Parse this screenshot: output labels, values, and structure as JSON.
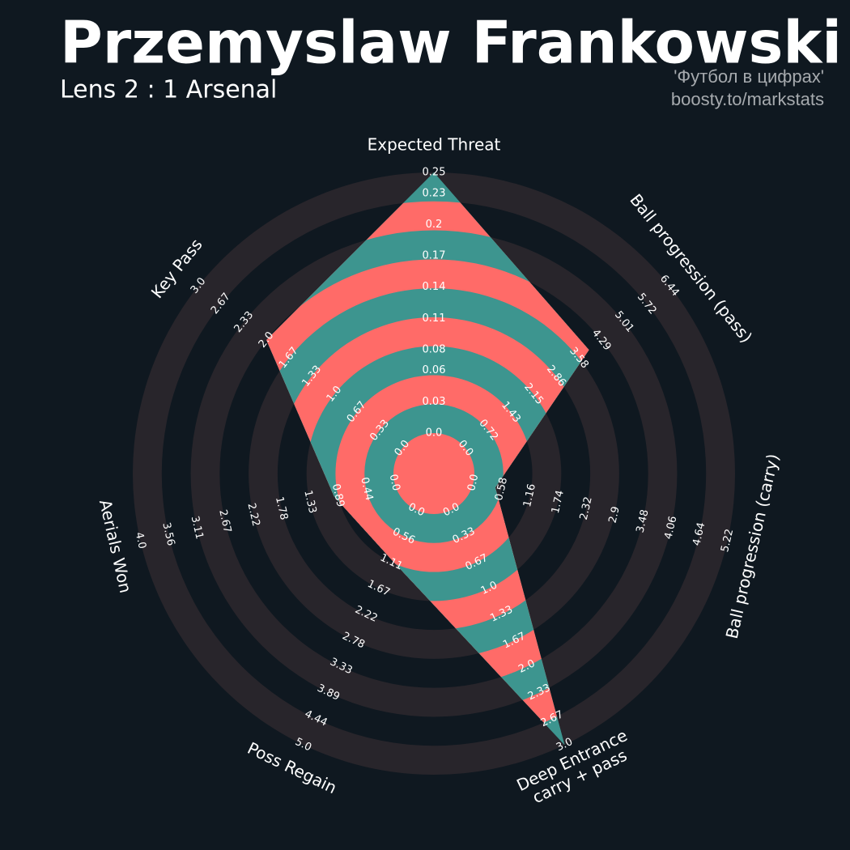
{
  "chart_data": {
    "type": "radar",
    "title": "Przemyslaw Frankowski",
    "subtitle": "Lens 2 : 1 Arsenal",
    "credits": [
      "'Футбол в цифрах'",
      "boosty.to/markstats"
    ],
    "categories": [
      "Expected Threat",
      "Ball progression (pass)",
      "Ball progression (carry)",
      "Deep Entrance\ncarry + pass",
      "Poss Regain",
      "Aerials Won",
      "Key Pass"
    ],
    "values": [
      0.25,
      3.9,
      0.45,
      3,
      1.07,
      0.95,
      2
    ],
    "ranges": [
      [
        0,
        0.25
      ],
      [
        0,
        6.44
      ],
      [
        0,
        5.22
      ],
      [
        0,
        3
      ],
      [
        0,
        5
      ],
      [
        0,
        4
      ],
      [
        0,
        3
      ]
    ],
    "ticks": [
      [
        {
          "value": 0,
          "label": "0.0"
        },
        0.03,
        0.06,
        0.08,
        0.11,
        0.14,
        0.17,
        0.2,
        0.23,
        0.25
      ],
      [
        {
          "value": 0,
          "label": "0.0"
        },
        0.72,
        1.43,
        2.15,
        2.86,
        3.58,
        4.29,
        5.01,
        5.72,
        6.44
      ],
      [
        {
          "value": 0,
          "label": "0.0"
        },
        0.58,
        1.16,
        1.74,
        2.32,
        2.9,
        3.48,
        4.06,
        4.64,
        5.22
      ],
      [
        {
          "value": 0,
          "label": "0.0"
        },
        0.33,
        0.67,
        {
          "value": 1,
          "label": "1.0"
        },
        1.33,
        1.67,
        {
          "value": 2,
          "label": "2.0"
        },
        2.33,
        2.67,
        {
          "value": 3,
          "label": "3.0"
        }
      ],
      [
        {
          "value": 0,
          "label": "0.0"
        },
        0.56,
        1.11,
        1.67,
        2.22,
        2.78,
        3.33,
        3.89,
        4.44,
        {
          "value": 5,
          "label": "5.0"
        }
      ],
      [
        {
          "value": 0,
          "label": "0.0"
        },
        0.44,
        0.89,
        1.33,
        1.78,
        2.22,
        2.67,
        3.11,
        3.56,
        {
          "value": 4,
          "label": "4.0"
        }
      ],
      [
        {
          "value": 0,
          "label": "0.0"
        },
        0.33,
        0.67,
        {
          "value": 1,
          "label": "1.0"
        },
        1.33,
        1.67,
        {
          "value": 2,
          "label": "2.0"
        },
        2.33,
        2.67,
        {
          "value": 3,
          "label": "3.0"
        }
      ]
    ],
    "colors": {
      "background": "#0f1820",
      "ring": "#28252b",
      "fill": "#3d958f",
      "fill_alt": "#ff6b68"
    }
  }
}
